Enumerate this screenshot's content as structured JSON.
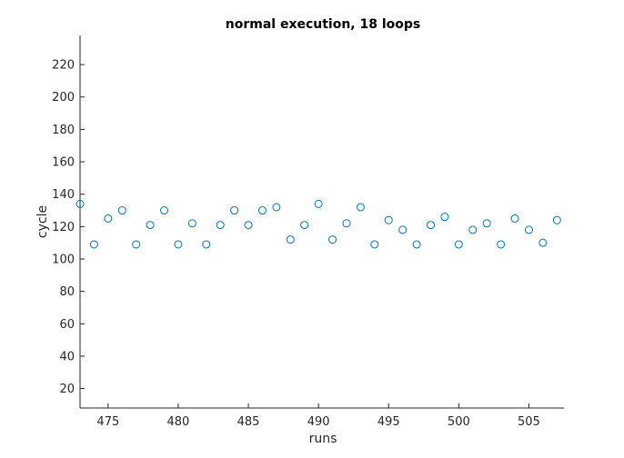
{
  "chart_data": {
    "type": "scatter",
    "title": "normal execution, 18 loops",
    "xlabel": "runs",
    "ylabel": "cycle",
    "xlim": [
      473,
      507.5
    ],
    "ylim": [
      8,
      238
    ],
    "xticks": [
      475,
      480,
      485,
      490,
      495,
      500,
      505
    ],
    "yticks": [
      20,
      40,
      60,
      80,
      100,
      120,
      140,
      160,
      180,
      200,
      220
    ],
    "grid": false,
    "marker": "circle-open",
    "marker_color": "#0072BD",
    "axis_color": "#262626",
    "points": [
      {
        "x": 473,
        "y": 134
      },
      {
        "x": 474,
        "y": 109
      },
      {
        "x": 475,
        "y": 125
      },
      {
        "x": 476,
        "y": 130
      },
      {
        "x": 477,
        "y": 109
      },
      {
        "x": 478,
        "y": 121
      },
      {
        "x": 479,
        "y": 130
      },
      {
        "x": 480,
        "y": 109
      },
      {
        "x": 481,
        "y": 122
      },
      {
        "x": 482,
        "y": 109
      },
      {
        "x": 483,
        "y": 121
      },
      {
        "x": 484,
        "y": 130
      },
      {
        "x": 485,
        "y": 121
      },
      {
        "x": 486,
        "y": 130
      },
      {
        "x": 487,
        "y": 132
      },
      {
        "x": 488,
        "y": 112
      },
      {
        "x": 489,
        "y": 121
      },
      {
        "x": 490,
        "y": 134
      },
      {
        "x": 491,
        "y": 112
      },
      {
        "x": 492,
        "y": 122
      },
      {
        "x": 493,
        "y": 132
      },
      {
        "x": 494,
        "y": 109
      },
      {
        "x": 495,
        "y": 124
      },
      {
        "x": 496,
        "y": 118
      },
      {
        "x": 497,
        "y": 109
      },
      {
        "x": 498,
        "y": 121
      },
      {
        "x": 499,
        "y": 126
      },
      {
        "x": 500,
        "y": 109
      },
      {
        "x": 501,
        "y": 118
      },
      {
        "x": 502,
        "y": 122
      },
      {
        "x": 503,
        "y": 109
      },
      {
        "x": 504,
        "y": 125
      },
      {
        "x": 505,
        "y": 118
      },
      {
        "x": 506,
        "y": 110
      },
      {
        "x": 507,
        "y": 124
      }
    ]
  }
}
